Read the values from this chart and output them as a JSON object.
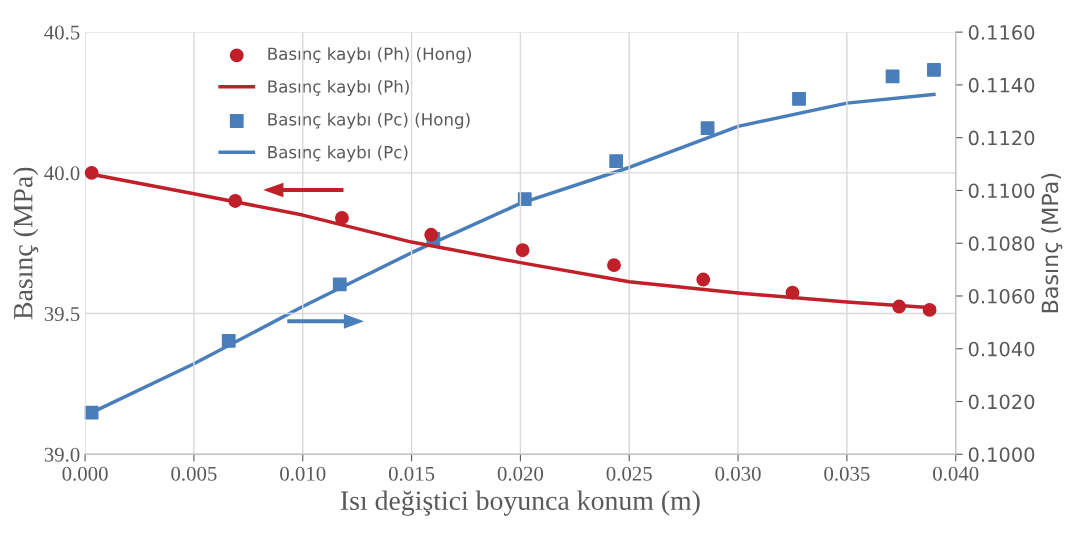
{
  "chart_data": {
    "type": "line",
    "xlabel": "Isı değiştici boyunca konum (m)",
    "ylabel": "Basınç (MPa)",
    "y2label": "Basınç (MPa)",
    "xlim": [
      0.0,
      0.04
    ],
    "xticks": [
      {
        "value": 0.0,
        "label": "0.000"
      },
      {
        "value": 0.005,
        "label": "0.005"
      },
      {
        "value": 0.01,
        "label": "0.010"
      },
      {
        "value": 0.015,
        "label": "0.015"
      },
      {
        "value": 0.02,
        "label": "0.020"
      },
      {
        "value": 0.025,
        "label": "0.025"
      },
      {
        "value": 0.03,
        "label": "0.030"
      },
      {
        "value": 0.035,
        "label": "0.035"
      },
      {
        "value": 0.04,
        "label": "0.040"
      }
    ],
    "ylim": [
      39.0,
      40.5
    ],
    "yticks": [
      {
        "value": 39.0,
        "label": "39.0"
      },
      {
        "value": 39.5,
        "label": "39.5"
      },
      {
        "value": 40.0,
        "label": "40.0"
      },
      {
        "value": 40.5,
        "label": "40.5"
      }
    ],
    "y2lim": [
      0.1,
      0.116
    ],
    "y2ticks": [
      {
        "value": 0.1,
        "label": "0.1000"
      },
      {
        "value": 0.102,
        "label": "0.1020"
      },
      {
        "value": 0.104,
        "label": "0.1040"
      },
      {
        "value": 0.106,
        "label": "0.1060"
      },
      {
        "value": 0.108,
        "label": "0.1080"
      },
      {
        "value": 0.11,
        "label": "0.1100"
      },
      {
        "value": 0.112,
        "label": "0.1120"
      },
      {
        "value": 0.114,
        "label": "0.1140"
      },
      {
        "value": 0.116,
        "label": "0.1160"
      }
    ],
    "grid": true,
    "legend": "top",
    "series": [
      {
        "name": "Basınç kaybı (Ph) (Hong)",
        "type": "scatter",
        "marker": "circle",
        "color": "#c0202a",
        "x": [
          0.0003,
          0.0069,
          0.0118,
          0.0159,
          0.0201,
          0.0243,
          0.0284,
          0.0325,
          0.0374,
          0.0388
        ],
        "values": [
          40.0,
          39.9,
          39.84,
          39.78,
          39.725,
          39.672,
          39.621,
          39.574,
          39.525,
          39.513
        ]
      },
      {
        "name": "Basınç kaybı (Ph)",
        "line_style": "solid",
        "color": "#c0202a",
        "x": [
          0.0003,
          0.005,
          0.01,
          0.015,
          0.02,
          0.025,
          0.03,
          0.035,
          0.039
        ],
        "values": [
          39.995,
          39.926,
          39.85,
          39.754,
          39.681,
          39.613,
          39.573,
          39.541,
          39.52
        ]
      },
      {
        "name": "Basınç kaybı (Pc) (Hong)",
        "type": "scatter",
        "marker": "square",
        "axis": "y2",
        "color": "#4a7ebb",
        "x": [
          0.0003,
          0.0066,
          0.0117,
          0.016,
          0.0202,
          0.0244,
          0.0286,
          0.0328,
          0.0371,
          0.039
        ],
        "values": [
          0.10158,
          0.1043,
          0.10644,
          0.10816,
          0.10967,
          0.11111,
          0.11236,
          0.11347,
          0.11432,
          0.11457
        ]
      },
      {
        "name": "Basınç kaybı (Pc)",
        "line_style": "solid",
        "axis": "y2",
        "color": "#4a7ebb",
        "x": [
          0.0003,
          0.005,
          0.01,
          0.015,
          0.02,
          0.025,
          0.03,
          0.035,
          0.039
        ],
        "values": [
          0.10158,
          0.10343,
          0.1056,
          0.10764,
          0.10951,
          0.11087,
          0.11243,
          0.11331,
          0.11364
        ]
      }
    ]
  }
}
